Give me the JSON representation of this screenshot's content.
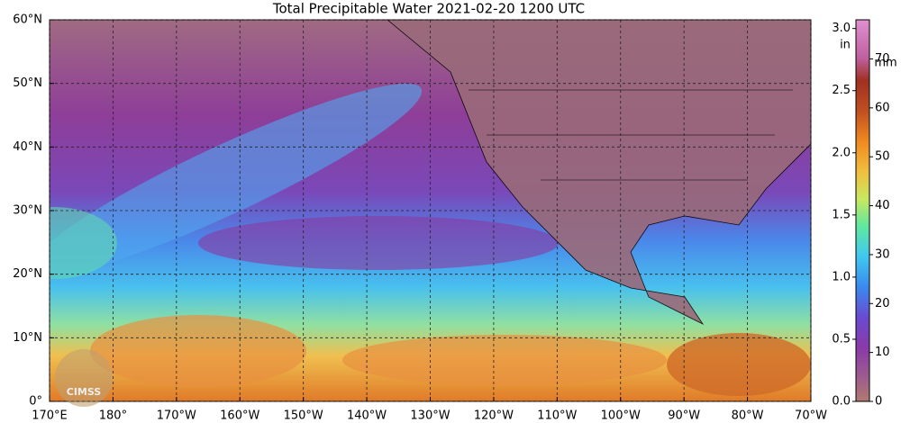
{
  "chart_data": {
    "type": "map",
    "title": "Total Precipitable Water  2021-02-20 1200 UTC",
    "xlim": [
      170,
      290
    ],
    "xticks": [
      {
        "value": 170,
        "label": "170°E"
      },
      {
        "value": 180,
        "label": "180°"
      },
      {
        "value": 190,
        "label": "170°W"
      },
      {
        "value": 200,
        "label": "160°W"
      },
      {
        "value": 210,
        "label": "150°W"
      },
      {
        "value": 220,
        "label": "140°W"
      },
      {
        "value": 230,
        "label": "130°W"
      },
      {
        "value": 240,
        "label": "120°W"
      },
      {
        "value": 250,
        "label": "110°W"
      },
      {
        "value": 260,
        "label": "100°W"
      },
      {
        "value": 270,
        "label": "90°W"
      },
      {
        "value": 280,
        "label": "80°W"
      },
      {
        "value": 290,
        "label": "70°W"
      }
    ],
    "ylim": [
      0,
      60
    ],
    "yticks": [
      {
        "value": 60,
        "label": "60°N"
      },
      {
        "value": 50,
        "label": "50°N"
      },
      {
        "value": 40,
        "label": "40°N"
      },
      {
        "value": 30,
        "label": "30°N"
      },
      {
        "value": 20,
        "label": "20°N"
      },
      {
        "value": 10,
        "label": "10°N"
      },
      {
        "value": 0,
        "label": "0°"
      }
    ],
    "grid": true,
    "colorbar": {
      "in_unit": "in",
      "mm_unit": "mm",
      "in_lim": [
        0,
        3.07
      ],
      "mm_lim": [
        0,
        78
      ],
      "in_ticks": [
        {
          "value": 0,
          "label": "0.0"
        },
        {
          "value": 0.5,
          "label": "0.5"
        },
        {
          "value": 1,
          "label": "1.0"
        },
        {
          "value": 1.5,
          "label": "1.5"
        },
        {
          "value": 2,
          "label": "2.0"
        },
        {
          "value": 2.5,
          "label": "2.5"
        },
        {
          "value": 3,
          "label": "3.0"
        }
      ],
      "mm_ticks": [
        0,
        10,
        20,
        30,
        40,
        50,
        60,
        70
      ]
    },
    "logo_text": "CIMSS"
  }
}
